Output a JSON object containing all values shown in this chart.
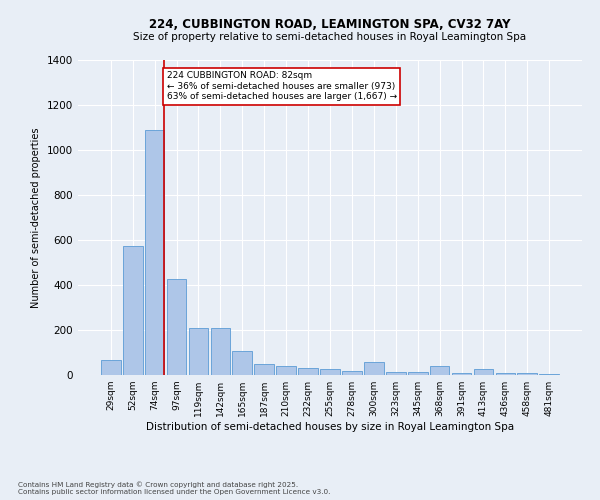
{
  "title1": "224, CUBBINGTON ROAD, LEAMINGTON SPA, CV32 7AY",
  "title2": "Size of property relative to semi-detached houses in Royal Leamington Spa",
  "xlabel": "Distribution of semi-detached houses by size in Royal Leamington Spa",
  "ylabel": "Number of semi-detached properties",
  "footer": "Contains HM Land Registry data © Crown copyright and database right 2025.\nContains public sector information licensed under the Open Government Licence v3.0.",
  "categories": [
    "29sqm",
    "52sqm",
    "74sqm",
    "97sqm",
    "119sqm",
    "142sqm",
    "165sqm",
    "187sqm",
    "210sqm",
    "232sqm",
    "255sqm",
    "278sqm",
    "300sqm",
    "323sqm",
    "345sqm",
    "368sqm",
    "391sqm",
    "413sqm",
    "436sqm",
    "458sqm",
    "481sqm"
  ],
  "values": [
    65,
    575,
    1090,
    425,
    210,
    210,
    105,
    50,
    40,
    30,
    25,
    20,
    60,
    15,
    15,
    40,
    10,
    25,
    10,
    8,
    5
  ],
  "bar_color": "#aec6e8",
  "bar_edge_color": "#5b9bd5",
  "bg_color": "#e8eef6",
  "grid_color": "#ffffff",
  "vline_color": "#cc0000",
  "annotation_text": "224 CUBBINGTON ROAD: 82sqm\n← 36% of semi-detached houses are smaller (973)\n63% of semi-detached houses are larger (1,667) →",
  "annotation_box_color": "#cc0000",
  "ylim": [
    0,
    1400
  ],
  "yticks": [
    0,
    200,
    400,
    600,
    800,
    1000,
    1200,
    1400
  ]
}
